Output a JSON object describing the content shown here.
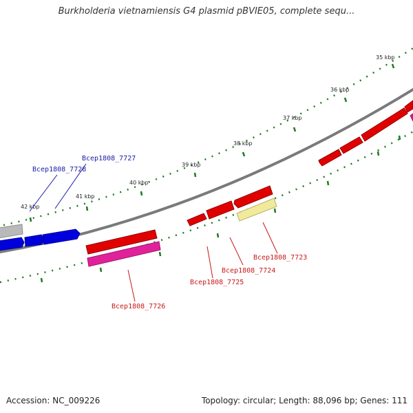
{
  "title": "Burkholderia vietnamiensis G4 plasmid pBVIE05, complete sequ...",
  "footer": {
    "accession": "Accession: NC_009226",
    "topology": "Topology: circular; Length: 88,096 bp; Genes: 111"
  },
  "scale_labels": [
    "35 kbp",
    "36 kbp",
    "37 kbp",
    "38 kbp",
    "39 kbp",
    "40 kbp",
    "41 kbp",
    "42 kbp"
  ],
  "gene_labels": {
    "forward": [
      "Bcep1808_7727",
      "Bcep1808_7728"
    ],
    "reverse": [
      "Bcep1808_7723",
      "Bcep1808_7724",
      "Bcep1808_7725",
      "Bcep1808_7726"
    ]
  },
  "colors": {
    "backbone": "#7a7a7a",
    "tick": "#1f7a1f",
    "gene_red": "#e10000",
    "gene_blue": "#0000dd",
    "gene_pink": "#e0229a",
    "gene_yellow": "#f1ea9a",
    "gene_gray": "#b9b9b9",
    "label_blue": "#1a1aa6",
    "label_red": "#c81818"
  }
}
